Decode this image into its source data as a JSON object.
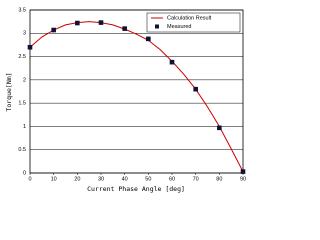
{
  "chart_data": {
    "type": "line",
    "x_label": "Current Phase Angle [deg]",
    "y_label": "Torque[Nm]",
    "xlim": [
      0,
      90
    ],
    "xticks": [
      0,
      10,
      20,
      30,
      40,
      50,
      60,
      70,
      80,
      90
    ],
    "ylim": [
      0,
      3.5
    ],
    "yticks": [
      0,
      0.5,
      1,
      1.5,
      2,
      2.5,
      3,
      3.5
    ],
    "grid": true,
    "legend": "upper right",
    "series": [
      {
        "name": "Calculation Result",
        "color": "#cc0000",
        "mode": "line",
        "x": [
          0,
          5,
          10,
          15,
          20,
          25,
          30,
          35,
          40,
          45,
          50,
          55,
          60,
          65,
          70,
          75,
          80,
          85,
          90
        ],
        "values": [
          2.7,
          2.92,
          3.07,
          3.18,
          3.23,
          3.25,
          3.23,
          3.18,
          3.09,
          2.98,
          2.85,
          2.65,
          2.4,
          2.12,
          1.8,
          1.42,
          1.0,
          0.52,
          0.03
        ]
      },
      {
        "name": "Measured",
        "color": "#111133",
        "mode": "marker",
        "x": [
          0,
          10,
          20,
          30,
          40,
          50,
          60,
          70,
          80,
          90
        ],
        "values": [
          2.7,
          3.07,
          3.22,
          3.23,
          3.1,
          2.88,
          2.38,
          1.8,
          0.97,
          0.03
        ]
      }
    ]
  }
}
